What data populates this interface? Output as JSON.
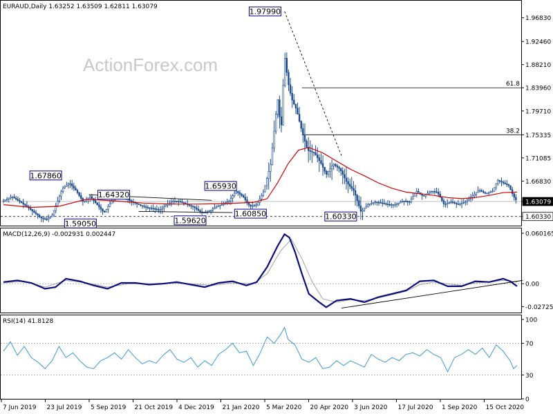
{
  "header": {
    "price_title": "EURAUD,Daily  1.63252 1.63509 1.62811 1.63079",
    "macd_title": "MACD(12,26,9) -0.002931 0.002447",
    "rsi_title": "RSI(14) 41.8128",
    "watermark": "ActionForex.com"
  },
  "colors": {
    "candle": "#1a4b8c",
    "ma": "#cc0000",
    "macd": "#0b0e7a",
    "signal": "#a0a0a0",
    "rsi": "#3a98d6",
    "box_border": "#000080",
    "frame": "#000000"
  },
  "chart_data": [
    {
      "type": "candlestick",
      "title": "EURAUD,Daily  1.63252 1.63509 1.62811 1.63079",
      "ylim": [
        1.589,
        1.9945
      ],
      "ytick_labels": [
        "1.96830",
        "1.92460",
        "1.88210",
        "1.83960",
        "1.79710",
        "1.75335",
        "1.71085",
        "1.66830",
        "1.63079",
        "1.60330"
      ],
      "ytick_values": [
        1.9683,
        1.9246,
        1.8821,
        1.8396,
        1.7971,
        1.75335,
        1.71085,
        1.6683,
        1.63079,
        1.6033
      ],
      "current_price": 1.63079,
      "support": 1.6033,
      "fib_levels": [
        {
          "label": "61.8",
          "value": 1.8396
        },
        {
          "label": "38.2",
          "value": 1.75335
        }
      ],
      "annotations": [
        {
          "text": "1.67860",
          "value": 1.6786
        },
        {
          "text": "1.64320",
          "value": 1.6432
        },
        {
          "text": "1.59050",
          "value": 1.5905
        },
        {
          "text": "1.59620",
          "value": 1.5962
        },
        {
          "text": "1.60850",
          "value": 1.6085
        },
        {
          "text": "1.65930",
          "value": 1.6593
        },
        {
          "text": "1.97990",
          "value": 1.9799
        },
        {
          "text": "1.60330",
          "value": 1.6033
        }
      ],
      "close_path": [
        [
          0,
          1.632
        ],
        [
          12,
          1.64
        ],
        [
          30,
          1.625
        ],
        [
          45,
          1.61
        ],
        [
          55,
          1.6
        ],
        [
          62,
          1.598
        ],
        [
          70,
          1.605
        ],
        [
          85,
          1.655
        ],
        [
          95,
          1.665
        ],
        [
          105,
          1.65
        ],
        [
          115,
          1.63
        ],
        [
          125,
          1.64
        ],
        [
          135,
          1.625
        ],
        [
          145,
          1.61
        ],
        [
          155,
          1.63
        ],
        [
          165,
          1.645
        ],
        [
          175,
          1.638
        ],
        [
          185,
          1.63
        ],
        [
          195,
          1.625
        ],
        [
          205,
          1.62
        ],
        [
          215,
          1.618
        ],
        [
          225,
          1.615
        ],
        [
          235,
          1.625
        ],
        [
          245,
          1.632
        ],
        [
          255,
          1.63
        ],
        [
          265,
          1.625
        ],
        [
          275,
          1.62
        ],
        [
          285,
          1.61
        ],
        [
          295,
          1.612
        ],
        [
          305,
          1.62
        ],
        [
          315,
          1.625
        ],
        [
          325,
          1.632
        ],
        [
          335,
          1.65
        ],
        [
          345,
          1.64
        ],
        [
          355,
          1.622
        ],
        [
          365,
          1.625
        ],
        [
          375,
          1.65
        ],
        [
          385,
          1.7
        ],
        [
          395,
          1.82
        ],
        [
          400,
          1.76
        ],
        [
          405,
          1.9
        ],
        [
          410,
          1.85
        ],
        [
          415,
          1.82
        ],
        [
          422,
          1.8
        ],
        [
          430,
          1.76
        ],
        [
          438,
          1.725
        ],
        [
          448,
          1.72
        ],
        [
          458,
          1.7
        ],
        [
          465,
          1.68
        ],
        [
          475,
          1.7
        ],
        [
          485,
          1.69
        ],
        [
          495,
          1.665
        ],
        [
          505,
          1.65
        ],
        [
          515,
          1.612
        ],
        [
          525,
          1.625
        ],
        [
          535,
          1.63
        ],
        [
          545,
          1.628
        ],
        [
          555,
          1.625
        ],
        [
          565,
          1.625
        ],
        [
          575,
          1.632
        ],
        [
          585,
          1.63
        ],
        [
          595,
          1.65
        ],
        [
          605,
          1.64
        ],
        [
          615,
          1.65
        ],
        [
          625,
          1.648
        ],
        [
          635,
          1.625
        ],
        [
          645,
          1.63
        ],
        [
          655,
          1.625
        ],
        [
          665,
          1.63
        ],
        [
          675,
          1.64
        ],
        [
          685,
          1.652
        ],
        [
          695,
          1.645
        ],
        [
          705,
          1.65
        ],
        [
          712,
          1.67
        ],
        [
          720,
          1.665
        ],
        [
          728,
          1.66
        ],
        [
          735,
          1.64
        ],
        [
          740,
          1.631
        ]
      ],
      "ma_path": [
        [
          0,
          1.625
        ],
        [
          40,
          1.62
        ],
        [
          80,
          1.622
        ],
        [
          120,
          1.635
        ],
        [
          160,
          1.632
        ],
        [
          200,
          1.628
        ],
        [
          240,
          1.626
        ],
        [
          280,
          1.626
        ],
        [
          320,
          1.627
        ],
        [
          360,
          1.629
        ],
        [
          380,
          1.636
        ],
        [
          395,
          1.665
        ],
        [
          410,
          1.7
        ],
        [
          425,
          1.725
        ],
        [
          440,
          1.73
        ],
        [
          460,
          1.72
        ],
        [
          480,
          1.705
        ],
        [
          500,
          1.69
        ],
        [
          520,
          1.678
        ],
        [
          540,
          1.665
        ],
        [
          560,
          1.655
        ],
        [
          580,
          1.648
        ],
        [
          600,
          1.645
        ],
        [
          620,
          1.642
        ],
        [
          640,
          1.638
        ],
        [
          660,
          1.636
        ],
        [
          680,
          1.638
        ],
        [
          700,
          1.642
        ],
        [
          720,
          1.647
        ],
        [
          740,
          1.648
        ]
      ],
      "xtick_labels": [
        "7 Jun 2019",
        "23 Jul 2019",
        "5 Sep 2019",
        "21 Oct 2019",
        "4 Dec 2019",
        "21 Jan 2020",
        "5 Mar 2020",
        "20 Apr 2020",
        "3 Jun 2020",
        "17 Jul 2020",
        "1 Sep 2020",
        "15 Oct 2020"
      ]
    },
    {
      "type": "line",
      "title": "MACD(12,26,9) -0.002931 0.002447",
      "ylim": [
        -0.0335,
        0.0635
      ],
      "ytick_labels": [
        "0.060165",
        "0.00",
        "-0.02725"
      ],
      "ytick_values": [
        0.060165,
        0.0,
        -0.02725
      ],
      "series": [
        {
          "values": [
            [
              0,
              0.002
            ],
            [
              20,
              0.004
            ],
            [
              40,
              0.001
            ],
            [
              60,
              -0.006
            ],
            [
              75,
              -0.004
            ],
            [
              90,
              0.006
            ],
            [
              110,
              0.003
            ],
            [
              130,
              -0.002
            ],
            [
              150,
              -0.006
            ],
            [
              170,
              0.001
            ],
            [
              190,
              0.001
            ],
            [
              210,
              -0.001
            ],
            [
              230,
              0.0
            ],
            [
              250,
              0.002
            ],
            [
              270,
              -0.001
            ],
            [
              290,
              -0.004
            ],
            [
              310,
              0.001
            ],
            [
              330,
              0.003
            ],
            [
              350,
              -0.002
            ],
            [
              365,
              0.002
            ],
            [
              380,
              0.02
            ],
            [
              395,
              0.045
            ],
            [
              405,
              0.059
            ],
            [
              412,
              0.055
            ],
            [
              420,
              0.038
            ],
            [
              430,
              0.012
            ],
            [
              440,
              -0.012
            ],
            [
              455,
              -0.022
            ],
            [
              465,
              -0.028
            ],
            [
              480,
              -0.02
            ],
            [
              500,
              -0.018
            ],
            [
              520,
              -0.022
            ],
            [
              540,
              -0.016
            ],
            [
              560,
              -0.012
            ],
            [
              580,
              -0.008
            ],
            [
              600,
              0.003
            ],
            [
              620,
              0.004
            ],
            [
              640,
              -0.003
            ],
            [
              660,
              -0.003
            ],
            [
              680,
              0.003
            ],
            [
              700,
              0.002
            ],
            [
              720,
              0.006
            ],
            [
              730,
              0.003
            ],
            [
              740,
              -0.003
            ]
          ]
        },
        {
          "values": [
            [
              0,
              0.001
            ],
            [
              30,
              0.003
            ],
            [
              60,
              -0.004
            ],
            [
              90,
              0.004
            ],
            [
              120,
              0.001
            ],
            [
              150,
              -0.004
            ],
            [
              180,
              0.0
            ],
            [
              210,
              0.0
            ],
            [
              240,
              0.001
            ],
            [
              270,
              0.0
            ],
            [
              300,
              -0.002
            ],
            [
              330,
              0.001
            ],
            [
              360,
              0.0
            ],
            [
              380,
              0.012
            ],
            [
              400,
              0.04
            ],
            [
              415,
              0.053
            ],
            [
              430,
              0.03
            ],
            [
              445,
              0.002
            ],
            [
              460,
              -0.018
            ],
            [
              480,
              -0.022
            ],
            [
              500,
              -0.019
            ],
            [
              520,
              -0.02
            ],
            [
              540,
              -0.017
            ],
            [
              560,
              -0.013
            ],
            [
              580,
              -0.009
            ],
            [
              600,
              -0.001
            ],
            [
              620,
              0.002
            ],
            [
              640,
              0.0
            ],
            [
              660,
              -0.002
            ],
            [
              680,
              0.001
            ],
            [
              700,
              0.002
            ],
            [
              720,
              0.004
            ],
            [
              740,
              0.002
            ]
          ]
        }
      ]
    },
    {
      "type": "line",
      "title": "RSI(14) 41.8128",
      "ylim": [
        0,
        100
      ],
      "ytick_labels": [
        "100",
        "70",
        "30",
        "0"
      ],
      "ytick_values": [
        100,
        70,
        30,
        0
      ],
      "series": [
        {
          "values": [
            [
              0,
              60
            ],
            [
              10,
              72
            ],
            [
              20,
              55
            ],
            [
              30,
              66
            ],
            [
              40,
              52
            ],
            [
              50,
              46
            ],
            [
              60,
              38
            ],
            [
              70,
              48
            ],
            [
              80,
              66
            ],
            [
              90,
              52
            ],
            [
              100,
              58
            ],
            [
              110,
              48
            ],
            [
              120,
              40
            ],
            [
              130,
              38
            ],
            [
              140,
              48
            ],
            [
              150,
              52
            ],
            [
              160,
              58
            ],
            [
              170,
              50
            ],
            [
              180,
              62
            ],
            [
              190,
              52
            ],
            [
              200,
              44
            ],
            [
              210,
              48
            ],
            [
              220,
              45
            ],
            [
              230,
              55
            ],
            [
              240,
              62
            ],
            [
              250,
              50
            ],
            [
              260,
              46
            ],
            [
              270,
              52
            ],
            [
              280,
              40
            ],
            [
              290,
              48
            ],
            [
              300,
              42
            ],
            [
              310,
              56
            ],
            [
              320,
              62
            ],
            [
              330,
              70
            ],
            [
              340,
              58
            ],
            [
              350,
              60
            ],
            [
              360,
              42
            ],
            [
              370,
              58
            ],
            [
              380,
              78
            ],
            [
              390,
              70
            ],
            [
              400,
              82
            ],
            [
              405,
              90
            ],
            [
              410,
              75
            ],
            [
              420,
              68
            ],
            [
              430,
              50
            ],
            [
              440,
              46
            ],
            [
              450,
              52
            ],
            [
              460,
              38
            ],
            [
              470,
              40
            ],
            [
              480,
              48
            ],
            [
              490,
              42
            ],
            [
              500,
              48
            ],
            [
              510,
              44
            ],
            [
              520,
              40
            ],
            [
              530,
              56
            ],
            [
              540,
              50
            ],
            [
              550,
              46
            ],
            [
              560,
              52
            ],
            [
              570,
              48
            ],
            [
              580,
              56
            ],
            [
              590,
              58
            ],
            [
              600,
              54
            ],
            [
              610,
              62
            ],
            [
              620,
              56
            ],
            [
              630,
              52
            ],
            [
              640,
              34
            ],
            [
              650,
              52
            ],
            [
              660,
              56
            ],
            [
              670,
              62
            ],
            [
              680,
              56
            ],
            [
              690,
              64
            ],
            [
              700,
              52
            ],
            [
              710,
              68
            ],
            [
              720,
              60
            ],
            [
              730,
              48
            ],
            [
              735,
              38
            ],
            [
              740,
              42
            ]
          ]
        }
      ]
    }
  ]
}
